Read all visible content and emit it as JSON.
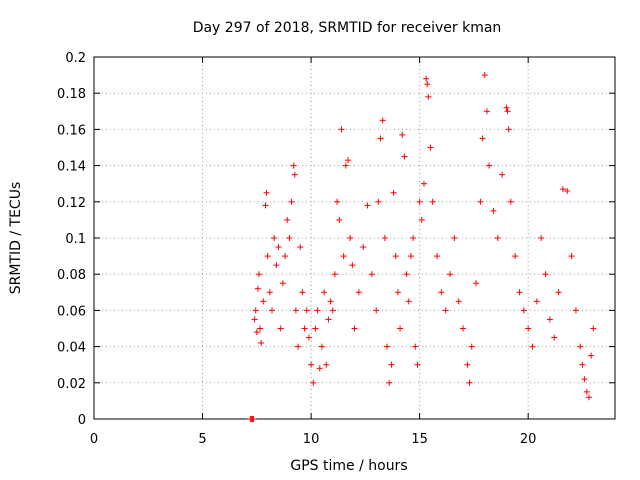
{
  "chart_data": {
    "type": "scatter",
    "title": "Day 297 of 2018, SRMTID for receiver kman",
    "xlabel": "GPS time / hours",
    "ylabel": "SRMTID / TECUs",
    "xlim": [
      0,
      24
    ],
    "ylim": [
      0,
      0.2
    ],
    "xticks": [
      0,
      5,
      10,
      15,
      20
    ],
    "xtick_labels": [
      "0",
      "5",
      "10",
      "15",
      "20"
    ],
    "yticks": [
      0,
      0.02,
      0.04,
      0.06,
      0.08,
      0.1,
      0.12,
      0.14,
      0.16,
      0.18,
      0.2
    ],
    "ytick_labels": [
      "0",
      "0.02",
      "0.04",
      "0.06",
      "0.08",
      "0.1",
      "0.12",
      "0.14",
      "0.16",
      "0.18",
      "0.2"
    ],
    "grid": true,
    "marker": "+",
    "series": [
      {
        "name": "SRMTID",
        "color": "#ff0000",
        "points": [
          [
            7.2,
            0.0
          ],
          [
            7.25,
            0.0
          ],
          [
            7.3,
            0.0
          ],
          [
            7.35,
            0.0
          ],
          [
            7.4,
            0.055
          ],
          [
            7.45,
            0.06
          ],
          [
            7.5,
            0.048
          ],
          [
            7.55,
            0.072
          ],
          [
            7.6,
            0.08
          ],
          [
            7.65,
            0.05
          ],
          [
            7.7,
            0.042
          ],
          [
            7.8,
            0.065
          ],
          [
            7.9,
            0.118
          ],
          [
            7.95,
            0.125
          ],
          [
            8.0,
            0.09
          ],
          [
            8.1,
            0.07
          ],
          [
            8.2,
            0.06
          ],
          [
            8.3,
            0.1
          ],
          [
            8.4,
            0.085
          ],
          [
            8.5,
            0.095
          ],
          [
            8.6,
            0.05
          ],
          [
            8.7,
            0.075
          ],
          [
            8.8,
            0.09
          ],
          [
            8.9,
            0.11
          ],
          [
            9.0,
            0.1
          ],
          [
            9.1,
            0.12
          ],
          [
            9.2,
            0.14
          ],
          [
            9.25,
            0.135
          ],
          [
            9.3,
            0.06
          ],
          [
            9.4,
            0.04
          ],
          [
            9.5,
            0.095
          ],
          [
            9.6,
            0.07
          ],
          [
            9.7,
            0.05
          ],
          [
            9.8,
            0.06
          ],
          [
            9.9,
            0.045
          ],
          [
            10.0,
            0.03
          ],
          [
            10.1,
            0.02
          ],
          [
            10.2,
            0.05
          ],
          [
            10.3,
            0.06
          ],
          [
            10.4,
            0.028
          ],
          [
            10.5,
            0.04
          ],
          [
            10.6,
            0.07
          ],
          [
            10.7,
            0.03
          ],
          [
            10.8,
            0.055
          ],
          [
            10.9,
            0.065
          ],
          [
            11.0,
            0.06
          ],
          [
            11.1,
            0.08
          ],
          [
            11.2,
            0.12
          ],
          [
            11.3,
            0.11
          ],
          [
            11.4,
            0.16
          ],
          [
            11.5,
            0.09
          ],
          [
            11.6,
            0.14
          ],
          [
            11.7,
            0.143
          ],
          [
            11.8,
            0.1
          ],
          [
            11.9,
            0.085
          ],
          [
            12.0,
            0.05
          ],
          [
            12.2,
            0.07
          ],
          [
            12.4,
            0.095
          ],
          [
            12.6,
            0.118
          ],
          [
            12.8,
            0.08
          ],
          [
            13.0,
            0.06
          ],
          [
            13.1,
            0.12
          ],
          [
            13.2,
            0.155
          ],
          [
            13.3,
            0.165
          ],
          [
            13.4,
            0.1
          ],
          [
            13.5,
            0.04
          ],
          [
            13.6,
            0.02
          ],
          [
            13.7,
            0.03
          ],
          [
            13.8,
            0.125
          ],
          [
            13.9,
            0.09
          ],
          [
            14.0,
            0.07
          ],
          [
            14.1,
            0.05
          ],
          [
            14.2,
            0.157
          ],
          [
            14.3,
            0.145
          ],
          [
            14.4,
            0.08
          ],
          [
            14.5,
            0.065
          ],
          [
            14.6,
            0.09
          ],
          [
            14.7,
            0.1
          ],
          [
            14.8,
            0.04
          ],
          [
            14.9,
            0.03
          ],
          [
            15.0,
            0.12
          ],
          [
            15.1,
            0.11
          ],
          [
            15.2,
            0.13
          ],
          [
            15.3,
            0.188
          ],
          [
            15.35,
            0.185
          ],
          [
            15.4,
            0.178
          ],
          [
            15.5,
            0.15
          ],
          [
            15.6,
            0.12
          ],
          [
            15.8,
            0.09
          ],
          [
            16.0,
            0.07
          ],
          [
            16.2,
            0.06
          ],
          [
            16.4,
            0.08
          ],
          [
            16.6,
            0.1
          ],
          [
            16.8,
            0.065
          ],
          [
            17.0,
            0.05
          ],
          [
            17.2,
            0.03
          ],
          [
            17.3,
            0.02
          ],
          [
            17.4,
            0.04
          ],
          [
            17.6,
            0.075
          ],
          [
            17.8,
            0.12
          ],
          [
            17.9,
            0.155
          ],
          [
            18.0,
            0.19
          ],
          [
            18.1,
            0.17
          ],
          [
            18.2,
            0.14
          ],
          [
            18.4,
            0.115
          ],
          [
            18.6,
            0.1
          ],
          [
            18.8,
            0.135
          ],
          [
            19.0,
            0.172
          ],
          [
            19.05,
            0.17
          ],
          [
            19.1,
            0.16
          ],
          [
            19.2,
            0.12
          ],
          [
            19.4,
            0.09
          ],
          [
            19.6,
            0.07
          ],
          [
            19.8,
            0.06
          ],
          [
            20.0,
            0.05
          ],
          [
            20.2,
            0.04
          ],
          [
            20.4,
            0.065
          ],
          [
            20.6,
            0.1
          ],
          [
            20.8,
            0.08
          ],
          [
            21.0,
            0.055
          ],
          [
            21.2,
            0.045
          ],
          [
            21.4,
            0.07
          ],
          [
            21.6,
            0.127
          ],
          [
            21.8,
            0.126
          ],
          [
            22.0,
            0.09
          ],
          [
            22.2,
            0.06
          ],
          [
            22.4,
            0.04
          ],
          [
            22.5,
            0.03
          ],
          [
            22.6,
            0.022
          ],
          [
            22.7,
            0.015
          ],
          [
            22.8,
            0.012
          ],
          [
            22.9,
            0.035
          ],
          [
            23.0,
            0.05
          ]
        ]
      }
    ]
  }
}
